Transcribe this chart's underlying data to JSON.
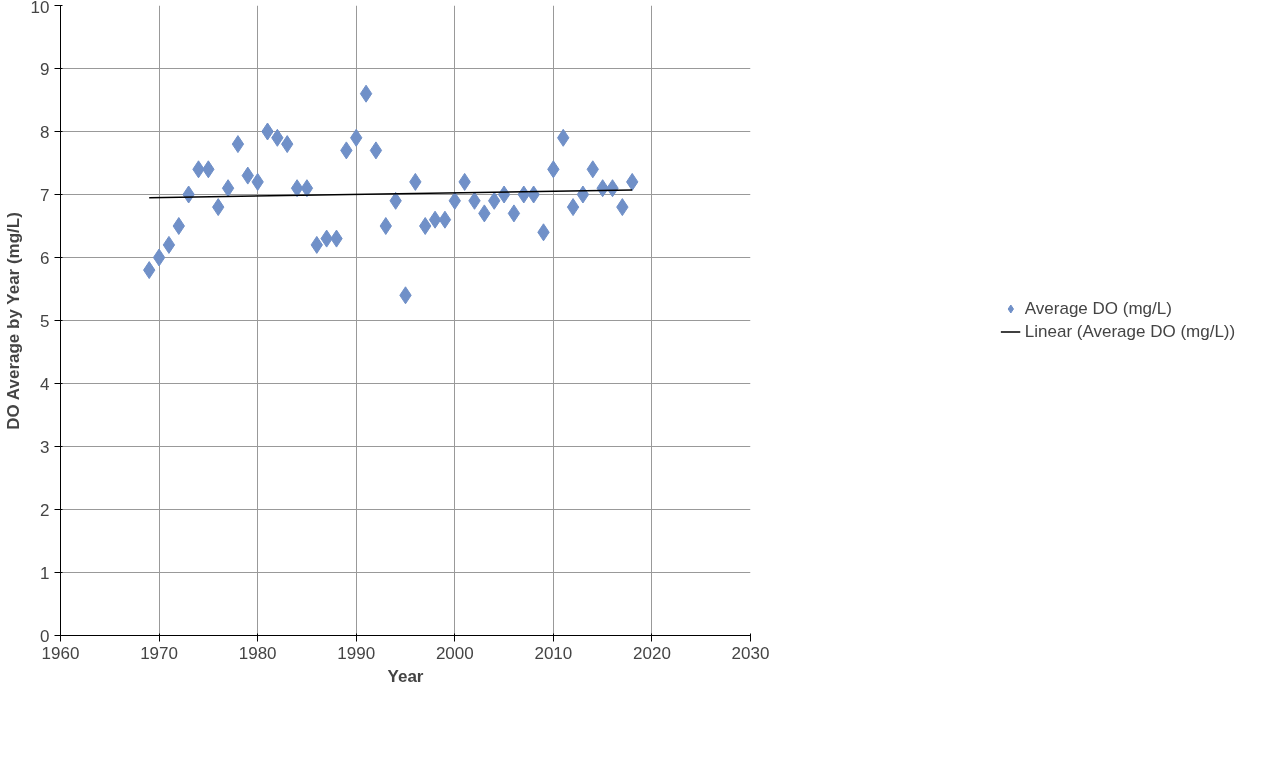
{
  "chart_data": {
    "type": "scatter",
    "xlabel": "Year",
    "ylabel": "DO Average by Year (mg/L)",
    "xlim": [
      1960,
      2030
    ],
    "xticks": [
      1960,
      1970,
      1980,
      1990,
      2000,
      2010,
      2020,
      2030
    ],
    "ylim": [
      0,
      10
    ],
    "yticks": [
      0,
      1,
      2,
      3,
      4,
      5,
      6,
      7,
      8,
      9,
      10
    ],
    "grid": true,
    "legend": "right",
    "series": [
      {
        "name": "Average DO (mg/L)",
        "marker": "diamond",
        "color": "#7090c8",
        "x": [
          1969,
          1970,
          1971,
          1972,
          1973,
          1974,
          1975,
          1976,
          1977,
          1978,
          1979,
          1980,
          1981,
          1982,
          1983,
          1984,
          1985,
          1986,
          1987,
          1988,
          1989,
          1990,
          1991,
          1992,
          1993,
          1994,
          1995,
          1996,
          1997,
          1998,
          1999,
          2000,
          2001,
          2002,
          2003,
          2004,
          2005,
          2006,
          2007,
          2008,
          2009,
          2010,
          2011,
          2012,
          2013,
          2014,
          2015,
          2016,
          2017,
          2018
        ],
        "values": [
          5.8,
          6.0,
          6.2,
          6.5,
          7.0,
          7.4,
          7.4,
          6.8,
          7.1,
          7.8,
          7.3,
          7.2,
          8.0,
          7.9,
          7.8,
          7.1,
          7.1,
          6.2,
          6.3,
          6.3,
          7.7,
          7.9,
          8.6,
          7.7,
          6.5,
          6.9,
          5.4,
          7.2,
          6.5,
          6.6,
          6.6,
          6.9,
          7.2,
          6.9,
          6.7,
          6.9,
          7.0,
          6.7,
          7.0,
          7.0,
          6.4,
          7.4,
          7.9,
          6.8,
          7.0,
          7.4,
          7.1,
          7.1,
          6.8,
          7.2
        ]
      },
      {
        "name": "Linear (Average DO (mg/L))",
        "type": "line",
        "color": "#000000",
        "line_style": "solid",
        "x": [
          1969,
          2018
        ],
        "values": [
          6.95,
          7.07
        ]
      }
    ]
  }
}
